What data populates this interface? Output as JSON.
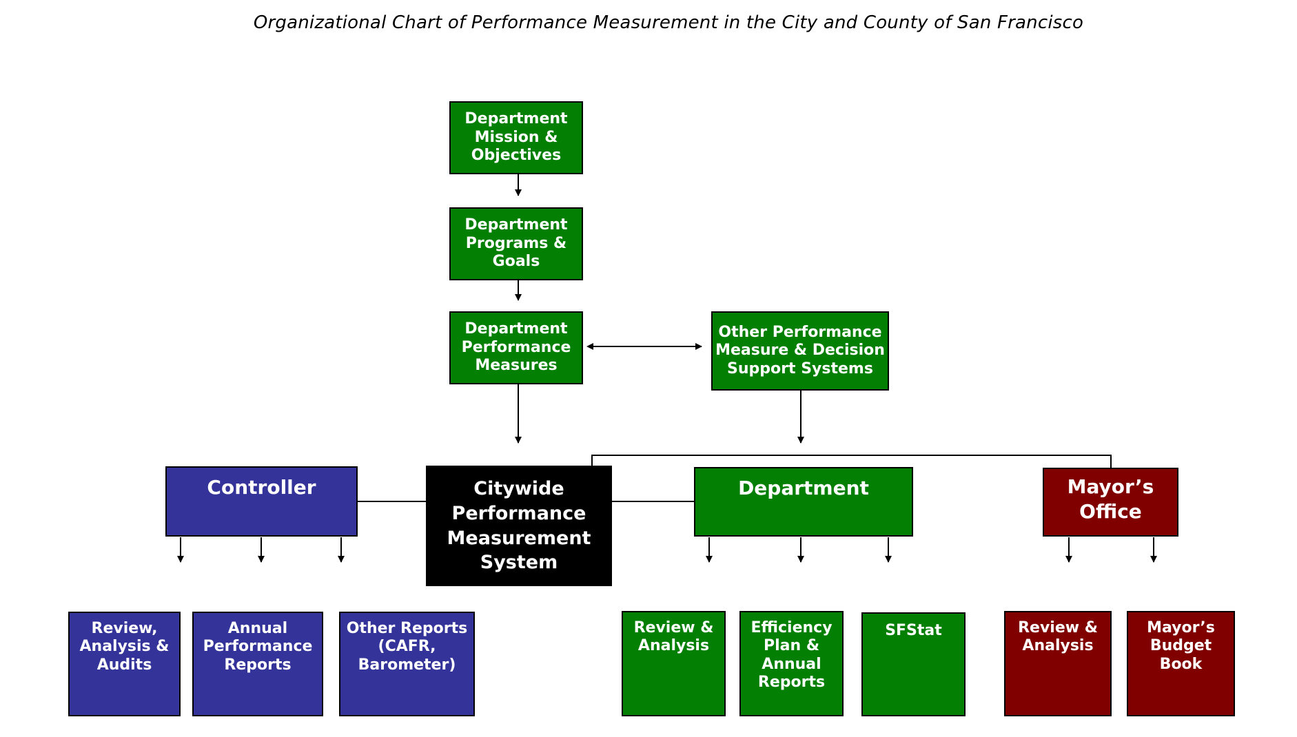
{
  "title": "Organizational Chart of Performance Measurement in the City and County of San Francisco",
  "colors": {
    "green": "#038003",
    "blue": "#343399",
    "red": "#800000",
    "black": "#000000"
  },
  "nodes": {
    "dept_mission": "Department\nMission &\nObjectives",
    "dept_programs": "Department\nPrograms &\nGoals",
    "dept_measures": "Department\nPerformance\nMeasures",
    "other_systems": "Other Performance\nMeasure & Decision\nSupport Systems",
    "controller": "Controller",
    "citywide": "Citywide\nPerformance\nMeasurement\nSystem",
    "department": "Department",
    "mayors_office": "Mayor’s\nOffice",
    "ctrl_review": "Review,\nAnalysis &\nAudits",
    "ctrl_annual": "Annual\nPerformance\nReports",
    "ctrl_other": "Other Reports\n(CAFR,\nBarometer)",
    "dept_review": "Review &\nAnalysis",
    "dept_efficiency": "Efficiency\nPlan &\nAnnual\nReports",
    "dept_sfstat": "SFStat",
    "mayor_review": "Review &\nAnalysis",
    "mayor_budget": "Mayor’s\nBudget\nBook"
  }
}
